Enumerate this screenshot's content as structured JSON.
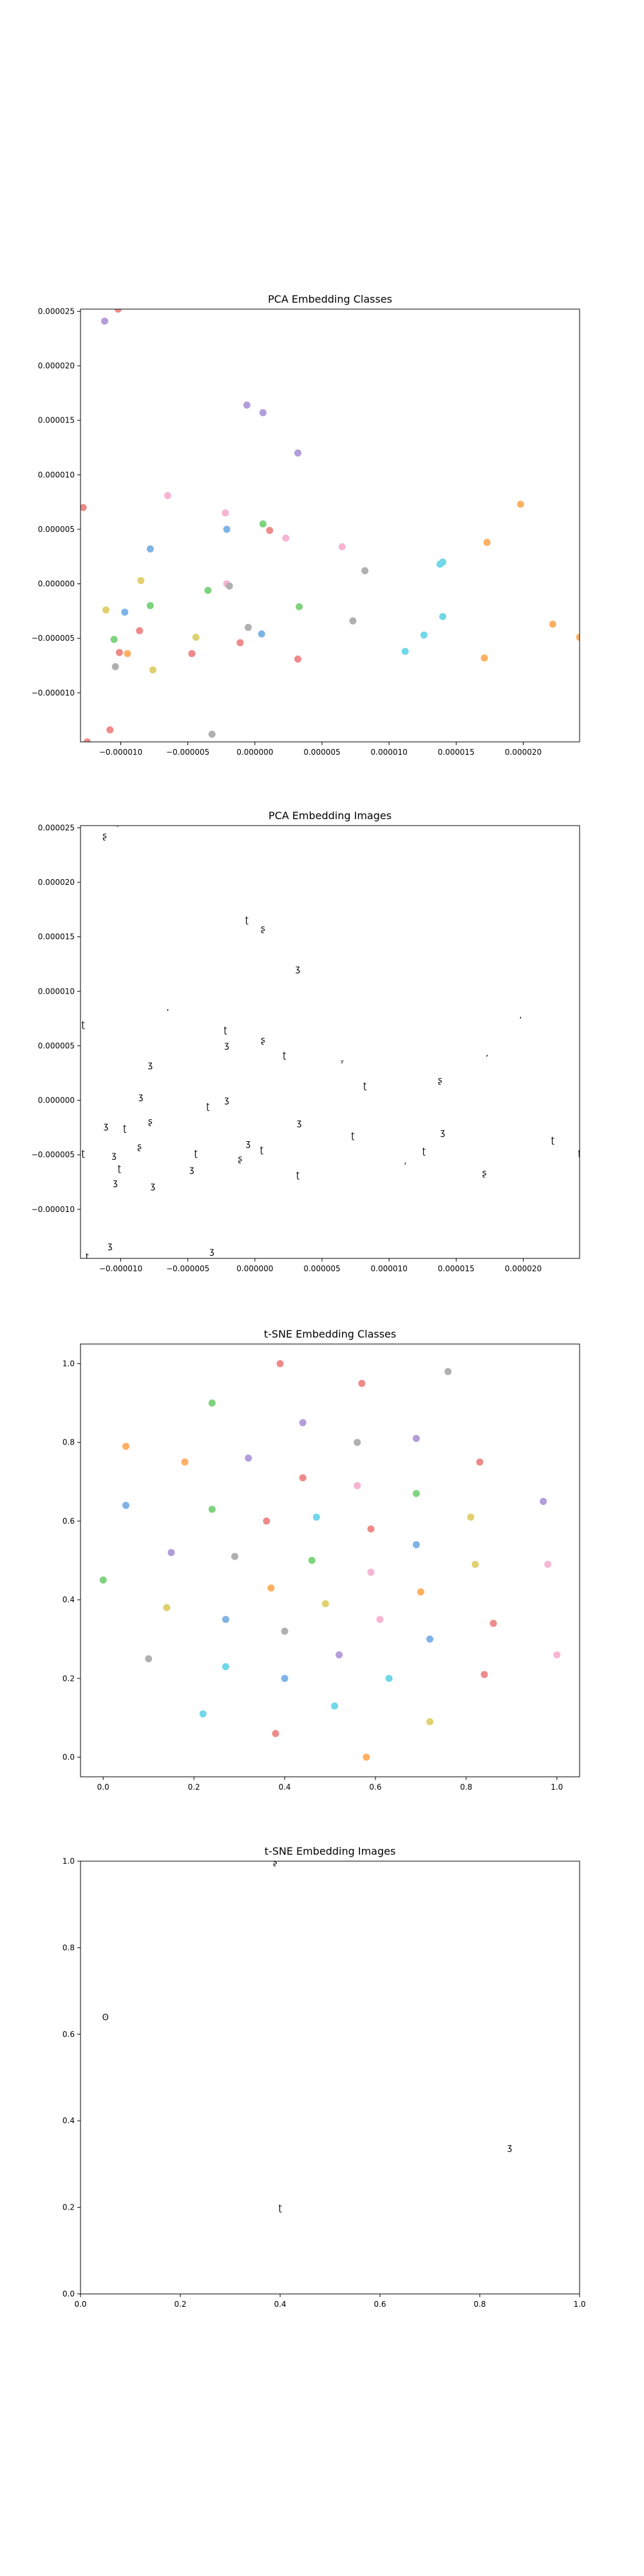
{
  "chart_data": [
    {
      "type": "scatter",
      "title": "PCA Embedding Classes",
      "xlim": [
        -1.3e-05,
        2.42e-05
      ],
      "ylim": [
        -1.45e-05,
        2.52e-05
      ],
      "xticks": [
        -1e-05,
        -5e-06,
        0.0,
        5e-06,
        1e-05,
        1.5e-05,
        2e-05
      ],
      "xtick_labels": [
        "−0.000010",
        "−0.000005",
        "0.000000",
        "0.000005",
        "0.000010",
        "0.000015",
        "0.000020"
      ],
      "yticks": [
        -1e-05,
        -5e-06,
        0.0,
        5e-06,
        1e-05,
        1.5e-05,
        2e-05,
        2.5e-05
      ],
      "ytick_labels": [
        "−0.000010",
        "−0.000005",
        "0.000000",
        "0.000005",
        "0.000010",
        "0.000015",
        "0.000020",
        "0.000025"
      ],
      "grid": false,
      "points": [
        {
          "x": -1.12e-05,
          "y": 2.41e-05,
          "color": "#b39ddb"
        },
        {
          "x": -1.02e-05,
          "y": 2.52e-05,
          "color": "#ef8a8a"
        },
        {
          "x": -6e-07,
          "y": 1.64e-05,
          "color": "#b39ddb"
        },
        {
          "x": 6e-07,
          "y": 1.57e-05,
          "color": "#b39ddb"
        },
        {
          "x": 3.2e-06,
          "y": 1.2e-05,
          "color": "#b39ddb"
        },
        {
          "x": -1.28e-05,
          "y": 7e-06,
          "color": "#ef8a8a"
        },
        {
          "x": -6.5e-06,
          "y": 8.1e-06,
          "color": "#f7b5d3"
        },
        {
          "x": -2.2e-06,
          "y": 6.5e-06,
          "color": "#f7b5d3"
        },
        {
          "x": -7.8e-06,
          "y": 3.2e-06,
          "color": "#7fb3e6"
        },
        {
          "x": -2.1e-06,
          "y": 5e-06,
          "color": "#7fb3e6"
        },
        {
          "x": 6e-07,
          "y": 5.5e-06,
          "color": "#7ed47e"
        },
        {
          "x": 1.1e-06,
          "y": 4.9e-06,
          "color": "#ef8a8a"
        },
        {
          "x": 2.3e-06,
          "y": 4.2e-06,
          "color": "#f7b5d3"
        },
        {
          "x": 6.5e-06,
          "y": 3.4e-06,
          "color": "#f7b5d3"
        },
        {
          "x": 8.2e-06,
          "y": 1.2e-06,
          "color": "#b0b0b0"
        },
        {
          "x": 1.98e-05,
          "y": 7.3e-06,
          "color": "#ffb062"
        },
        {
          "x": 1.73e-05,
          "y": 3.8e-06,
          "color": "#ffb062"
        },
        {
          "x": 1.38e-05,
          "y": 1.8e-06,
          "color": "#70d8e8"
        },
        {
          "x": 1.4e-05,
          "y": 2e-06,
          "color": "#70d8e8"
        },
        {
          "x": -8.5e-06,
          "y": 3e-07,
          "color": "#e0d070"
        },
        {
          "x": -2.1e-06,
          "y": 0.0,
          "color": "#f7b5d3"
        },
        {
          "x": -1.9e-06,
          "y": -2e-07,
          "color": "#b0b0b0"
        },
        {
          "x": -3.5e-06,
          "y": -6e-07,
          "color": "#7ed47e"
        },
        {
          "x": -1.11e-05,
          "y": -2.4e-06,
          "color": "#e0d070"
        },
        {
          "x": -9.7e-06,
          "y": -2.6e-06,
          "color": "#7fb3e6"
        },
        {
          "x": -7.8e-06,
          "y": -2e-06,
          "color": "#7ed47e"
        },
        {
          "x": 3.3e-06,
          "y": -2.1e-06,
          "color": "#7ed47e"
        },
        {
          "x": 7.3e-06,
          "y": -3.4e-06,
          "color": "#b0b0b0"
        },
        {
          "x": 1.4e-05,
          "y": -3e-06,
          "color": "#70d8e8"
        },
        {
          "x": -8.6e-06,
          "y": -4.3e-06,
          "color": "#ef8a8a"
        },
        {
          "x": -1.05e-05,
          "y": -5.1e-06,
          "color": "#7ed47e"
        },
        {
          "x": -4.4e-06,
          "y": -4.9e-06,
          "color": "#e0d070"
        },
        {
          "x": -5e-07,
          "y": -4e-06,
          "color": "#b0b0b0"
        },
        {
          "x": 5e-07,
          "y": -4.6e-06,
          "color": "#7fb3e6"
        },
        {
          "x": -1.1e-06,
          "y": -5.4e-06,
          "color": "#ef8a8a"
        },
        {
          "x": 1.26e-05,
          "y": -4.7e-06,
          "color": "#70d8e8"
        },
        {
          "x": 1.12e-05,
          "y": -6.2e-06,
          "color": "#70d8e8"
        },
        {
          "x": 2.22e-05,
          "y": -3.7e-06,
          "color": "#ffb062"
        },
        {
          "x": 2.42e-05,
          "y": -4.9e-06,
          "color": "#ffb062"
        },
        {
          "x": 1.71e-05,
          "y": -6.8e-06,
          "color": "#ffb062"
        },
        {
          "x": -1.01e-05,
          "y": -6.3e-06,
          "color": "#ef8a8a"
        },
        {
          "x": -9.5e-06,
          "y": -6.4e-06,
          "color": "#ffb062"
        },
        {
          "x": -4.7e-06,
          "y": -6.4e-06,
          "color": "#ef8a8a"
        },
        {
          "x": 3.2e-06,
          "y": -6.9e-06,
          "color": "#ef8a8a"
        },
        {
          "x": -1.04e-05,
          "y": -7.6e-06,
          "color": "#b0b0b0"
        },
        {
          "x": -7.6e-06,
          "y": -7.9e-06,
          "color": "#e0d070"
        },
        {
          "x": -1.08e-05,
          "y": -1.34e-05,
          "color": "#ef8a8a"
        },
        {
          "x": -3.2e-06,
          "y": -1.38e-05,
          "color": "#b0b0b0"
        },
        {
          "x": -1.25e-05,
          "y": -1.45e-05,
          "color": "#ef8a8a"
        }
      ]
    },
    {
      "type": "scatter",
      "title": "PCA Embedding Images",
      "xlim": [
        -1.3e-05,
        2.42e-05
      ],
      "ylim": [
        -1.45e-05,
        2.52e-05
      ],
      "xticks": [
        -1e-05,
        -5e-06,
        0.0,
        5e-06,
        1e-05,
        1.5e-05,
        2e-05
      ],
      "xtick_labels": [
        "−0.000010",
        "−0.000005",
        "0.000000",
        "0.000005",
        "0.000010",
        "0.000015",
        "0.000020"
      ],
      "yticks": [
        -1e-05,
        -5e-06,
        0.0,
        5e-06,
        1e-05,
        1.5e-05,
        2e-05,
        2.5e-05
      ],
      "ytick_labels": [
        "−0.000010",
        "−0.000005",
        "0.000000",
        "0.000005",
        "0.000010",
        "0.000015",
        "0.000020",
        "0.000025"
      ],
      "grid": false,
      "points": [
        {
          "x": -1.12e-05,
          "y": 2.43e-05,
          "glyph": "ʂ"
        },
        {
          "x": -1.02e-05,
          "y": 2.52e-05,
          "glyph": "ʸ"
        },
        {
          "x": -6e-07,
          "y": 1.66e-05,
          "glyph": "ʈ"
        },
        {
          "x": 6e-07,
          "y": 1.58e-05,
          "glyph": "ʂ"
        },
        {
          "x": 3.2e-06,
          "y": 1.21e-05,
          "glyph": "ʒ"
        },
        {
          "x": -1.28e-05,
          "y": 7e-06,
          "glyph": "ʈ"
        },
        {
          "x": -6.5e-06,
          "y": 8.1e-06,
          "glyph": "ʼ"
        },
        {
          "x": -2.2e-06,
          "y": 6.5e-06,
          "glyph": "ʈ"
        },
        {
          "x": -7.8e-06,
          "y": 3.3e-06,
          "glyph": "ʒ"
        },
        {
          "x": -2.1e-06,
          "y": 5.1e-06,
          "glyph": "ʒ"
        },
        {
          "x": 6e-07,
          "y": 5.6e-06,
          "glyph": "ʂ"
        },
        {
          "x": 2.2e-06,
          "y": 4.2e-06,
          "glyph": "ʈ"
        },
        {
          "x": 6.5e-06,
          "y": 3.5e-06,
          "glyph": "ʸ"
        },
        {
          "x": 8.2e-06,
          "y": 1.4e-06,
          "glyph": "ʈ"
        },
        {
          "x": 1.98e-05,
          "y": 7.4e-06,
          "glyph": "ʼ"
        },
        {
          "x": 1.73e-05,
          "y": 3.9e-06,
          "glyph": "ʼ"
        },
        {
          "x": 1.38e-05,
          "y": 1.9e-06,
          "glyph": "ʂ"
        },
        {
          "x": -8.5e-06,
          "y": 4e-07,
          "glyph": "ʒ"
        },
        {
          "x": -2.1e-06,
          "y": 1e-07,
          "glyph": "ʒ"
        },
        {
          "x": -3.5e-06,
          "y": -5e-07,
          "glyph": "ʈ"
        },
        {
          "x": -1.11e-05,
          "y": -2.3e-06,
          "glyph": "ʒ"
        },
        {
          "x": -9.7e-06,
          "y": -2.5e-06,
          "glyph": "ʈ"
        },
        {
          "x": -7.8e-06,
          "y": -1.9e-06,
          "glyph": "ʂ"
        },
        {
          "x": 3.3e-06,
          "y": -2e-06,
          "glyph": "ʒ"
        },
        {
          "x": 7.3e-06,
          "y": -3.2e-06,
          "glyph": "ʈ"
        },
        {
          "x": 1.4e-05,
          "y": -2.9e-06,
          "glyph": "ʒ"
        },
        {
          "x": -8.6e-06,
          "y": -4.2e-06,
          "glyph": "ʂ"
        },
        {
          "x": -1.28e-05,
          "y": -4.8e-06,
          "glyph": "ʈ"
        },
        {
          "x": -1.05e-05,
          "y": -5e-06,
          "glyph": "ʒ"
        },
        {
          "x": -4.4e-06,
          "y": -4.8e-06,
          "glyph": "ʈ"
        },
        {
          "x": -5e-07,
          "y": -3.9e-06,
          "glyph": "ʒ"
        },
        {
          "x": 5e-07,
          "y": -4.5e-06,
          "glyph": "ʈ"
        },
        {
          "x": -1.1e-06,
          "y": -5.3e-06,
          "glyph": "ʂ"
        },
        {
          "x": 1.26e-05,
          "y": -4.6e-06,
          "glyph": "ʈ"
        },
        {
          "x": 1.12e-05,
          "y": -6e-06,
          "glyph": "ʼ"
        },
        {
          "x": 2.22e-05,
          "y": -3.6e-06,
          "glyph": "ʈ"
        },
        {
          "x": 2.42e-05,
          "y": -4.8e-06,
          "glyph": "ʈ"
        },
        {
          "x": 1.71e-05,
          "y": -6.6e-06,
          "glyph": "ʂ"
        },
        {
          "x": -1.01e-05,
          "y": -6.2e-06,
          "glyph": "ʈ"
        },
        {
          "x": -4.7e-06,
          "y": -6.3e-06,
          "glyph": "ʒ"
        },
        {
          "x": 3.2e-06,
          "y": -6.8e-06,
          "glyph": "ʈ"
        },
        {
          "x": -1.04e-05,
          "y": -7.5e-06,
          "glyph": "ʒ"
        },
        {
          "x": -7.6e-06,
          "y": -7.8e-06,
          "glyph": "ʒ"
        },
        {
          "x": -1.08e-05,
          "y": -1.33e-05,
          "glyph": "ʒ"
        },
        {
          "x": -1.25e-05,
          "y": -1.43e-05,
          "glyph": "ʈ"
        },
        {
          "x": -3.2e-06,
          "y": -1.38e-05,
          "glyph": "ʒ"
        }
      ]
    },
    {
      "type": "scatter",
      "title": "t-SNE Embedding Classes",
      "xlim": [
        -0.05,
        1.05
      ],
      "ylim": [
        -0.05,
        1.05
      ],
      "xticks": [
        0.0,
        0.2,
        0.4,
        0.6,
        0.8,
        1.0
      ],
      "xtick_labels": [
        "0.0",
        "0.2",
        "0.4",
        "0.6",
        "0.8",
        "1.0"
      ],
      "yticks": [
        0.0,
        0.2,
        0.4,
        0.6,
        0.8,
        1.0
      ],
      "ytick_labels": [
        "0.0",
        "0.2",
        "0.4",
        "0.6",
        "0.8",
        "1.0"
      ],
      "grid": false,
      "points": [
        {
          "x": 0.39,
          "y": 1.0,
          "color": "#ef8a8a"
        },
        {
          "x": 0.76,
          "y": 0.98,
          "color": "#b0b0b0"
        },
        {
          "x": 0.57,
          "y": 0.95,
          "color": "#ef8a8a"
        },
        {
          "x": 0.24,
          "y": 0.9,
          "color": "#7ed47e"
        },
        {
          "x": 0.44,
          "y": 0.85,
          "color": "#b39ddb"
        },
        {
          "x": 0.69,
          "y": 0.81,
          "color": "#b39ddb"
        },
        {
          "x": 0.56,
          "y": 0.8,
          "color": "#b0b0b0"
        },
        {
          "x": 0.05,
          "y": 0.79,
          "color": "#ffb062"
        },
        {
          "x": 0.32,
          "y": 0.76,
          "color": "#b39ddb"
        },
        {
          "x": 0.18,
          "y": 0.75,
          "color": "#ffb062"
        },
        {
          "x": 0.83,
          "y": 0.75,
          "color": "#ef8a8a"
        },
        {
          "x": 0.44,
          "y": 0.71,
          "color": "#ef8a8a"
        },
        {
          "x": 0.56,
          "y": 0.69,
          "color": "#f7b5d3"
        },
        {
          "x": 0.69,
          "y": 0.67,
          "color": "#7ed47e"
        },
        {
          "x": 0.05,
          "y": 0.64,
          "color": "#7fb3e6"
        },
        {
          "x": 0.97,
          "y": 0.65,
          "color": "#b39ddb"
        },
        {
          "x": 0.24,
          "y": 0.63,
          "color": "#7ed47e"
        },
        {
          "x": 0.81,
          "y": 0.61,
          "color": "#e0d070"
        },
        {
          "x": 0.36,
          "y": 0.6,
          "color": "#ef8a8a"
        },
        {
          "x": 0.47,
          "y": 0.61,
          "color": "#70d8e8"
        },
        {
          "x": 0.59,
          "y": 0.58,
          "color": "#ef8a8a"
        },
        {
          "x": 0.69,
          "y": 0.54,
          "color": "#7fb3e6"
        },
        {
          "x": 0.15,
          "y": 0.52,
          "color": "#b39ddb"
        },
        {
          "x": 0.29,
          "y": 0.51,
          "color": "#b0b0b0"
        },
        {
          "x": 0.46,
          "y": 0.5,
          "color": "#7ed47e"
        },
        {
          "x": 0.98,
          "y": 0.49,
          "color": "#f7b5d3"
        },
        {
          "x": 0.82,
          "y": 0.49,
          "color": "#e0d070"
        },
        {
          "x": 0.59,
          "y": 0.47,
          "color": "#f7b5d3"
        },
        {
          "x": 0.0,
          "y": 0.45,
          "color": "#7ed47e"
        },
        {
          "x": 0.37,
          "y": 0.43,
          "color": "#ffb062"
        },
        {
          "x": 0.7,
          "y": 0.42,
          "color": "#ffb062"
        },
        {
          "x": 0.49,
          "y": 0.39,
          "color": "#e0d070"
        },
        {
          "x": 0.14,
          "y": 0.38,
          "color": "#e0d070"
        },
        {
          "x": 0.27,
          "y": 0.35,
          "color": "#7fb3e6"
        },
        {
          "x": 0.61,
          "y": 0.35,
          "color": "#f7b5d3"
        },
        {
          "x": 0.86,
          "y": 0.34,
          "color": "#ef8a8a"
        },
        {
          "x": 0.4,
          "y": 0.32,
          "color": "#b0b0b0"
        },
        {
          "x": 0.72,
          "y": 0.3,
          "color": "#7fb3e6"
        },
        {
          "x": 0.52,
          "y": 0.26,
          "color": "#b39ddb"
        },
        {
          "x": 1.0,
          "y": 0.26,
          "color": "#f7b5d3"
        },
        {
          "x": 0.1,
          "y": 0.25,
          "color": "#b0b0b0"
        },
        {
          "x": 0.27,
          "y": 0.23,
          "color": "#70d8e8"
        },
        {
          "x": 0.84,
          "y": 0.21,
          "color": "#ef8a8a"
        },
        {
          "x": 0.4,
          "y": 0.2,
          "color": "#7fb3e6"
        },
        {
          "x": 0.63,
          "y": 0.2,
          "color": "#70d8e8"
        },
        {
          "x": 0.51,
          "y": 0.13,
          "color": "#70d8e8"
        },
        {
          "x": 0.22,
          "y": 0.11,
          "color": "#70d8e8"
        },
        {
          "x": 0.72,
          "y": 0.09,
          "color": "#e0d070"
        },
        {
          "x": 0.38,
          "y": 0.06,
          "color": "#ef8a8a"
        },
        {
          "x": 0.58,
          "y": 0.0,
          "color": "#ffb062"
        }
      ]
    },
    {
      "type": "scatter",
      "title": "t-SNE Embedding Images",
      "xlim": [
        0.0,
        1.0
      ],
      "ylim": [
        0.0,
        1.0
      ],
      "xticks": [
        0.0,
        0.2,
        0.4,
        0.6,
        0.8,
        1.0
      ],
      "xtick_labels": [
        "0.0",
        "0.2",
        "0.4",
        "0.6",
        "0.8",
        "1.0"
      ],
      "yticks": [
        0.0,
        0.2,
        0.4,
        0.6,
        0.8,
        1.0
      ],
      "ytick_labels": [
        "0.0",
        "0.2",
        "0.4",
        "0.6",
        "0.8",
        "1.0"
      ],
      "grid": false,
      "points": [
        {
          "x": 0.39,
          "y": 1.0,
          "glyph": "ʂ"
        },
        {
          "x": 0.05,
          "y": 0.64,
          "glyph": "ʘ"
        },
        {
          "x": 0.86,
          "y": 0.34,
          "glyph": "ʒ"
        },
        {
          "x": 0.4,
          "y": 0.2,
          "glyph": "ʈ"
        }
      ]
    }
  ],
  "colors": {
    "frame": "#000000",
    "background": "#ffffff"
  }
}
